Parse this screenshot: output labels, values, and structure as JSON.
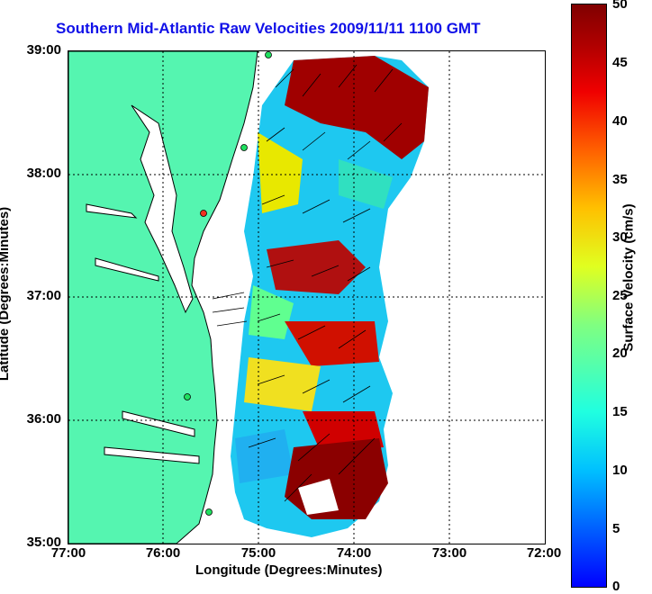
{
  "title": "Southern Mid-Atlantic Raw Velocities 2009/11/11 1100 GMT",
  "axes": {
    "xlabel": "Longitude (Degrees:Minutes)",
    "ylabel": "Latitude (Degrees:Minutes)",
    "xticks": [
      "77:00",
      "76:00",
      "75:00",
      "74:00",
      "73:00",
      "72:00"
    ],
    "yticks": [
      "39:00",
      "38:00",
      "37:00",
      "36:00",
      "35:00"
    ]
  },
  "colorbar": {
    "label": "Surface Velocity (cm/s)",
    "ticks": [
      "50",
      "45",
      "40",
      "35",
      "30",
      "25",
      "20",
      "15",
      "10",
      "5",
      "0"
    ]
  },
  "colors": {
    "title": "#1010e8",
    "land": "#55f5b0",
    "grid": "#000000"
  }
}
